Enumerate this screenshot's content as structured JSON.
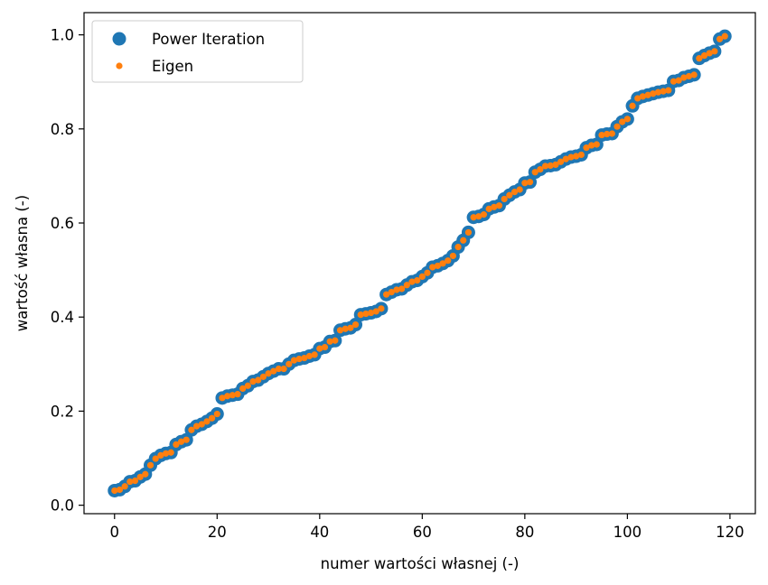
{
  "chart_data": {
    "type": "scatter",
    "title": "",
    "xlabel": "numer wartości własnej (-)",
    "ylabel": "wartość własna (-)",
    "xlim": [
      -5.95,
      124.95
    ],
    "ylim": [
      -0.018,
      1.0472
    ],
    "x_ticks": [
      0,
      20,
      40,
      60,
      80,
      100,
      120
    ],
    "x_tick_labels": [
      "0",
      "20",
      "40",
      "60",
      "80",
      "100",
      "120"
    ],
    "y_ticks": [
      0.0,
      0.2,
      0.4,
      0.6,
      0.8,
      1.0
    ],
    "y_tick_labels": [
      "0.0",
      "0.2",
      "0.4",
      "0.6",
      "0.8",
      "1.0"
    ],
    "grid": false,
    "legend_position": "top-left",
    "x": [
      0,
      1,
      2,
      3,
      4,
      5,
      6,
      7,
      8,
      9,
      10,
      11,
      12,
      13,
      14,
      15,
      16,
      17,
      18,
      19,
      20,
      21,
      22,
      23,
      24,
      25,
      26,
      27,
      28,
      29,
      30,
      31,
      32,
      33,
      34,
      35,
      36,
      37,
      38,
      39,
      40,
      41,
      42,
      43,
      44,
      45,
      46,
      47,
      48,
      49,
      50,
      51,
      52,
      53,
      54,
      55,
      56,
      57,
      58,
      59,
      60,
      61,
      62,
      63,
      64,
      65,
      66,
      67,
      68,
      69,
      70,
      71,
      72,
      73,
      74,
      75,
      76,
      77,
      78,
      79,
      80,
      81,
      82,
      83,
      84,
      85,
      86,
      87,
      88,
      89,
      90,
      91,
      92,
      93,
      94,
      95,
      96,
      97,
      98,
      99,
      100,
      101,
      102,
      103,
      104,
      105,
      106,
      107,
      108,
      109,
      110,
      111,
      112,
      113,
      114,
      115,
      116,
      117,
      118,
      119
    ],
    "series": [
      {
        "name": "Power Iteration",
        "marker": "circle-large",
        "color": "#1f77b4",
        "values": [
          0.031,
          0.033,
          0.04,
          0.05,
          0.052,
          0.06,
          0.066,
          0.085,
          0.099,
          0.106,
          0.11,
          0.112,
          0.129,
          0.135,
          0.139,
          0.16,
          0.168,
          0.172,
          0.178,
          0.185,
          0.194,
          0.228,
          0.232,
          0.234,
          0.236,
          0.248,
          0.254,
          0.263,
          0.266,
          0.273,
          0.28,
          0.285,
          0.29,
          0.29,
          0.3,
          0.308,
          0.311,
          0.313,
          0.317,
          0.32,
          0.333,
          0.336,
          0.348,
          0.35,
          0.372,
          0.375,
          0.377,
          0.384,
          0.405,
          0.407,
          0.409,
          0.412,
          0.418,
          0.448,
          0.453,
          0.458,
          0.46,
          0.468,
          0.475,
          0.478,
          0.486,
          0.494,
          0.506,
          0.509,
          0.514,
          0.52,
          0.53,
          0.549,
          0.563,
          0.58,
          0.612,
          0.614,
          0.618,
          0.63,
          0.634,
          0.637,
          0.651,
          0.659,
          0.666,
          0.671,
          0.685,
          0.687,
          0.708,
          0.714,
          0.721,
          0.722,
          0.724,
          0.73,
          0.736,
          0.74,
          0.742,
          0.745,
          0.76,
          0.765,
          0.767,
          0.787,
          0.789,
          0.79,
          0.805,
          0.815,
          0.821,
          0.849,
          0.865,
          0.869,
          0.872,
          0.875,
          0.878,
          0.88,
          0.882,
          0.901,
          0.903,
          0.909,
          0.912,
          0.915,
          0.95,
          0.956,
          0.961,
          0.965,
          0.991,
          0.997
        ]
      },
      {
        "name": "Eigen",
        "marker": "point-small",
        "color": "#ff7f0e",
        "values": [
          0.031,
          0.033,
          0.04,
          0.05,
          0.052,
          0.06,
          0.066,
          0.085,
          0.099,
          0.106,
          0.11,
          0.112,
          0.129,
          0.135,
          0.139,
          0.16,
          0.168,
          0.172,
          0.178,
          0.185,
          0.194,
          0.228,
          0.232,
          0.234,
          0.236,
          0.248,
          0.254,
          0.263,
          0.266,
          0.273,
          0.28,
          0.285,
          0.29,
          0.29,
          0.3,
          0.308,
          0.311,
          0.313,
          0.317,
          0.32,
          0.333,
          0.336,
          0.348,
          0.35,
          0.372,
          0.375,
          0.377,
          0.384,
          0.405,
          0.407,
          0.409,
          0.412,
          0.418,
          0.448,
          0.453,
          0.458,
          0.46,
          0.468,
          0.475,
          0.478,
          0.486,
          0.494,
          0.506,
          0.509,
          0.514,
          0.52,
          0.53,
          0.549,
          0.563,
          0.58,
          0.612,
          0.614,
          0.618,
          0.63,
          0.634,
          0.637,
          0.651,
          0.659,
          0.666,
          0.671,
          0.685,
          0.687,
          0.708,
          0.714,
          0.721,
          0.722,
          0.724,
          0.73,
          0.736,
          0.74,
          0.742,
          0.745,
          0.76,
          0.765,
          0.767,
          0.787,
          0.789,
          0.79,
          0.805,
          0.815,
          0.821,
          0.849,
          0.865,
          0.869,
          0.872,
          0.875,
          0.878,
          0.88,
          0.882,
          0.901,
          0.903,
          0.909,
          0.912,
          0.915,
          0.95,
          0.956,
          0.961,
          0.965,
          0.991,
          0.997
        ]
      }
    ]
  }
}
